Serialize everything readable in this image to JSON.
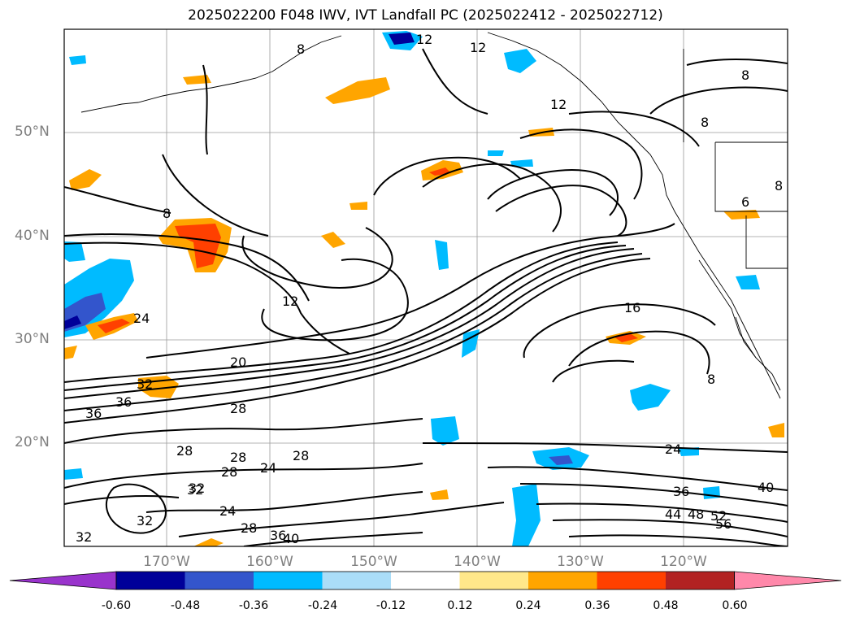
{
  "title": "2025022200 F048 IWV, IVT Landfall PC (2025022412 - 2025022712)",
  "map": {
    "lat_labels": [
      "50°N",
      "40°N",
      "30°N",
      "20°N"
    ],
    "lon_labels": [
      "170°W",
      "160°W",
      "150°W",
      "140°W",
      "130°W",
      "120°W"
    ],
    "contour_labels": [
      "12",
      "12",
      "12",
      "8",
      "8",
      "8",
      "8",
      "8",
      "12",
      "24",
      "20",
      "32",
      "36",
      "36",
      "28",
      "16",
      "28",
      "28",
      "28",
      "24",
      "28",
      "32",
      "24",
      "32",
      "28",
      "36",
      "32",
      "40",
      "24",
      "36",
      "44",
      "48",
      "52",
      "56",
      "40",
      "8",
      "6",
      "32"
    ],
    "grid": true
  },
  "colorbar": {
    "colors": [
      "#9933cc",
      "#000099",
      "#3355cc",
      "#00bbff",
      "#aaddf8",
      "#ffffff",
      "#ffe88a",
      "#ffa500",
      "#ff4000",
      "#b22222",
      "#ff88aa"
    ],
    "ticks": [
      "-0.60",
      "-0.48",
      "-0.36",
      "-0.24",
      "-0.12",
      "0.12",
      "0.24",
      "0.36",
      "0.48",
      "0.60"
    ]
  }
}
